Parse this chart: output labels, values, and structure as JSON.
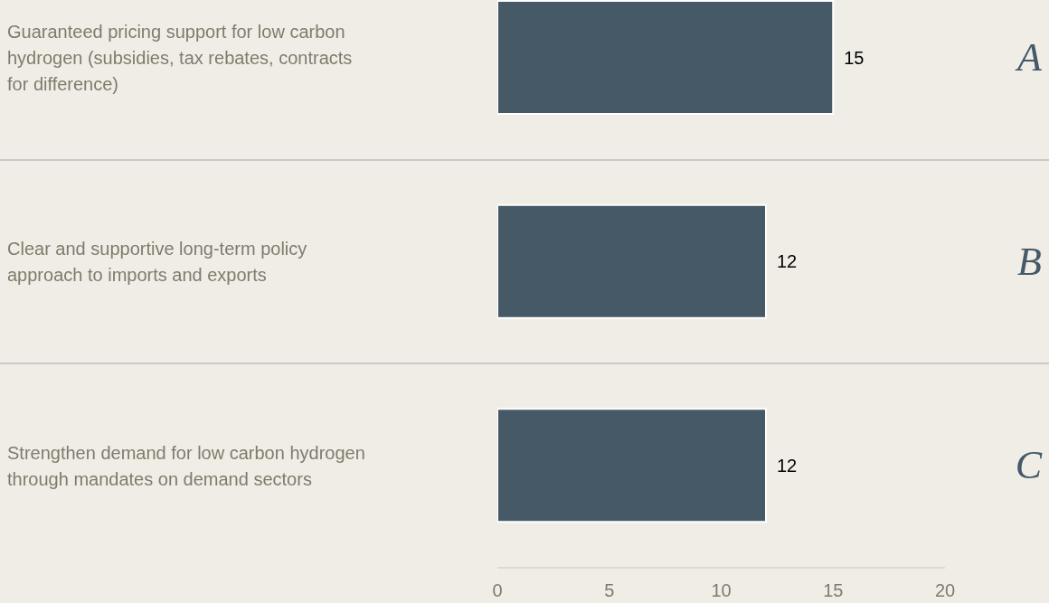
{
  "chart_data": {
    "type": "bar",
    "orientation": "horizontal",
    "categories": [
      "Guaranteed pricing support for low carbon hydrogen (subsidies, tax rebates, contracts for difference)",
      "Clear and supportive long-term policy approach to imports and exports",
      "Strengthen demand for low carbon hydrogen through mandates on demand sectors"
    ],
    "values": [
      15,
      12,
      12
    ],
    "color": "#455a66",
    "xlim": [
      0,
      20
    ],
    "xticks": [
      0,
      5,
      10,
      15,
      20
    ],
    "data_labels": true,
    "annotations": [
      "A",
      "B",
      "C"
    ]
  }
}
